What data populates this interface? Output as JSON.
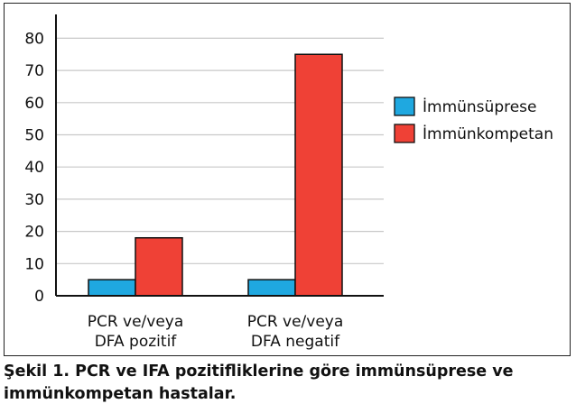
{
  "caption": "Şekil 1. PCR ve IFA pozitifliklerine göre immünsüprese ve immünkompetan hastalar.",
  "colors": {
    "immunsuprese": "#1fa8e0",
    "immunkompetan": "#ef4136",
    "grid": "#c8c8c8",
    "axis": "#111111"
  },
  "chart_data": {
    "type": "bar",
    "categories": [
      [
        "PCR ve/veya",
        "DFA pozitif"
      ],
      [
        "PCR ve/veya",
        "DFA negatif"
      ]
    ],
    "series": [
      {
        "name": "İmmünsüprese",
        "values": [
          5,
          5
        ]
      },
      {
        "name": "İmmünkompetan",
        "values": [
          18,
          75
        ]
      }
    ],
    "yticks": [
      "0",
      "10",
      "20",
      "30",
      "40",
      "50",
      "60",
      "70",
      "80"
    ],
    "ylim": [
      0,
      85
    ],
    "grid": true,
    "legend": "right"
  }
}
